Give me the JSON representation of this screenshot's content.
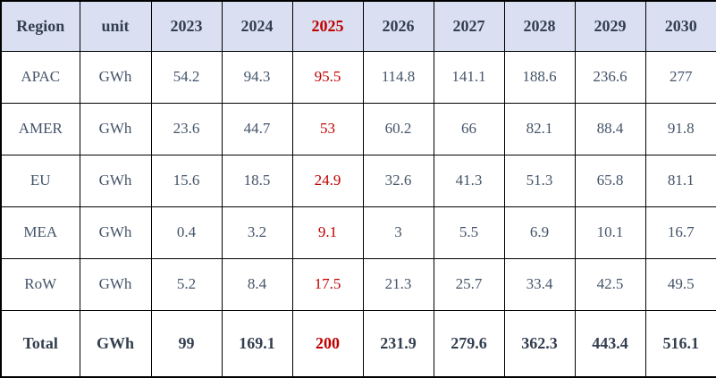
{
  "table": {
    "header": {
      "region_label": "Region",
      "unit_label": "unit",
      "years": [
        "2023",
        "2024",
        "2025",
        "2026",
        "2027",
        "2028",
        "2029",
        "2030"
      ]
    },
    "highlight_year": "2025",
    "rows": [
      {
        "region": "APAC",
        "unit": "GWh",
        "values": [
          "54.2",
          "94.3",
          "95.5",
          "114.8",
          "141.1",
          "188.6",
          "236.6",
          "277"
        ]
      },
      {
        "region": "AMER",
        "unit": "GWh",
        "values": [
          "23.6",
          "44.7",
          "53",
          "60.2",
          "66",
          "82.1",
          "88.4",
          "91.8"
        ]
      },
      {
        "region": "EU",
        "unit": "GWh",
        "values": [
          "15.6",
          "18.5",
          "24.9",
          "32.6",
          "41.3",
          "51.3",
          "65.8",
          "81.1"
        ]
      },
      {
        "region": "MEA",
        "unit": "GWh",
        "values": [
          "0.4",
          "3.2",
          "9.1",
          "3",
          "5.5",
          "6.9",
          "10.1",
          "16.7"
        ]
      },
      {
        "region": "RoW",
        "unit": "GWh",
        "values": [
          "5.2",
          "8.4",
          "17.5",
          "21.3",
          "25.7",
          "33.4",
          "42.5",
          "49.5"
        ]
      }
    ],
    "total_row": {
      "region": "Total",
      "unit": "GWh",
      "values": [
        "99",
        "169.1",
        "200",
        "231.9",
        "279.6",
        "362.3",
        "443.4",
        "516.1"
      ]
    },
    "colors": {
      "header_bg": "#dae0f1",
      "header_text": "#333F50",
      "body_text": "#44546A",
      "highlight_red": "#C00000",
      "border": "#000000"
    }
  },
  "chart_data": {
    "type": "table",
    "title": "",
    "unit": "GWh",
    "categories": [
      "2023",
      "2024",
      "2025",
      "2026",
      "2027",
      "2028",
      "2029",
      "2030"
    ],
    "highlighted_category": "2025",
    "series": [
      {
        "name": "APAC",
        "values": [
          54.2,
          94.3,
          95.5,
          114.8,
          141.1,
          188.6,
          236.6,
          277
        ]
      },
      {
        "name": "AMER",
        "values": [
          23.6,
          44.7,
          53,
          60.2,
          66,
          82.1,
          88.4,
          91.8
        ]
      },
      {
        "name": "EU",
        "values": [
          15.6,
          18.5,
          24.9,
          32.6,
          41.3,
          51.3,
          65.8,
          81.1
        ]
      },
      {
        "name": "MEA",
        "values": [
          0.4,
          3.2,
          9.1,
          3,
          5.5,
          6.9,
          10.1,
          16.7
        ]
      },
      {
        "name": "RoW",
        "values": [
          5.2,
          8.4,
          17.5,
          21.3,
          25.7,
          33.4,
          42.5,
          49.5
        ]
      },
      {
        "name": "Total",
        "values": [
          99,
          169.1,
          200,
          231.9,
          279.6,
          362.3,
          443.4,
          516.1
        ]
      }
    ]
  }
}
